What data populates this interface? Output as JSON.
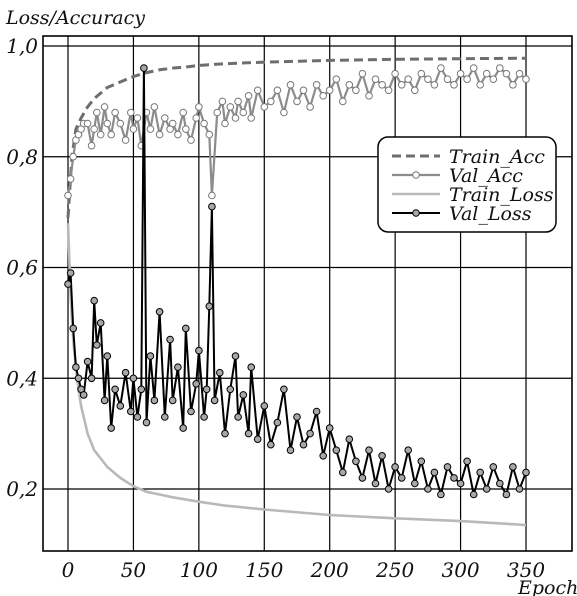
{
  "chart_data": {
    "type": "line",
    "title": "",
    "ylabel": "Loss/Accuracy",
    "xlabel": "Epoch",
    "xlim": [
      0,
      350
    ],
    "ylim": [
      0.12,
      1.03
    ],
    "xticks": [
      0,
      50,
      100,
      150,
      200,
      250,
      300,
      350
    ],
    "yticks": [
      0.2,
      0.4,
      0.6,
      0.8,
      1.0
    ],
    "ytick_labels": [
      "0,2",
      "0,4",
      "0,6",
      "0,8",
      "1,0"
    ],
    "grid": true,
    "legend_position": "right",
    "series": [
      {
        "name": "Train_Acc",
        "style": "dashed",
        "color": "#6e6e6e",
        "markers": false,
        "x": [
          0,
          3,
          6,
          10,
          15,
          20,
          25,
          30,
          40,
          50,
          60,
          70,
          80,
          90,
          100,
          120,
          150,
          200,
          250,
          300,
          350
        ],
        "y": [
          0.69,
          0.8,
          0.85,
          0.87,
          0.89,
          0.905,
          0.915,
          0.925,
          0.935,
          0.945,
          0.952,
          0.957,
          0.96,
          0.962,
          0.965,
          0.968,
          0.971,
          0.974,
          0.976,
          0.977,
          0.978
        ]
      },
      {
        "name": "Val_Acc",
        "style": "solid",
        "color": "#8c8c8c",
        "markers": true,
        "marker_fill": "#ffffff",
        "x": [
          0,
          2,
          4,
          6,
          8,
          10,
          12,
          15,
          18,
          20,
          22,
          25,
          28,
          30,
          33,
          36,
          40,
          44,
          48,
          50,
          53,
          56,
          60,
          63,
          66,
          70,
          74,
          78,
          80,
          84,
          88,
          90,
          94,
          98,
          100,
          104,
          108,
          110,
          114,
          118,
          120,
          124,
          128,
          130,
          134,
          138,
          140,
          145,
          150,
          155,
          160,
          165,
          170,
          175,
          180,
          185,
          190,
          195,
          200,
          205,
          210,
          215,
          220,
          225,
          230,
          235,
          240,
          245,
          250,
          255,
          260,
          265,
          270,
          275,
          280,
          285,
          290,
          295,
          300,
          305,
          310,
          315,
          320,
          325,
          330,
          335,
          340,
          345,
          350
        ],
        "y": [
          0.73,
          0.76,
          0.8,
          0.83,
          0.84,
          0.85,
          0.86,
          0.86,
          0.82,
          0.85,
          0.88,
          0.84,
          0.89,
          0.86,
          0.84,
          0.88,
          0.86,
          0.83,
          0.88,
          0.85,
          0.87,
          0.82,
          0.88,
          0.85,
          0.89,
          0.84,
          0.87,
          0.85,
          0.86,
          0.84,
          0.88,
          0.85,
          0.83,
          0.87,
          0.89,
          0.86,
          0.84,
          0.73,
          0.88,
          0.9,
          0.86,
          0.89,
          0.87,
          0.9,
          0.88,
          0.91,
          0.87,
          0.92,
          0.89,
          0.9,
          0.92,
          0.88,
          0.93,
          0.9,
          0.92,
          0.89,
          0.93,
          0.91,
          0.92,
          0.94,
          0.9,
          0.93,
          0.92,
          0.95,
          0.91,
          0.94,
          0.93,
          0.92,
          0.95,
          0.93,
          0.94,
          0.92,
          0.95,
          0.94,
          0.93,
          0.96,
          0.94,
          0.93,
          0.95,
          0.94,
          0.96,
          0.93,
          0.95,
          0.94,
          0.96,
          0.95,
          0.93,
          0.95,
          0.94
        ]
      },
      {
        "name": "Train_Loss",
        "style": "solid",
        "color": "#b9b9b9",
        "markers": false,
        "x": [
          0,
          2,
          4,
          6,
          8,
          10,
          15,
          20,
          25,
          30,
          40,
          50,
          60,
          70,
          80,
          100,
          120,
          150,
          200,
          250,
          300,
          350
        ],
        "y": [
          0.68,
          0.55,
          0.47,
          0.42,
          0.38,
          0.35,
          0.3,
          0.27,
          0.255,
          0.24,
          0.22,
          0.205,
          0.195,
          0.19,
          0.185,
          0.177,
          0.17,
          0.163,
          0.153,
          0.147,
          0.142,
          0.135
        ]
      },
      {
        "name": "Val_Loss",
        "style": "solid",
        "color": "#000000",
        "markers": true,
        "marker_fill": "#a8a8a8",
        "x": [
          0,
          2,
          4,
          6,
          8,
          10,
          12,
          15,
          18,
          20,
          22,
          25,
          28,
          30,
          33,
          36,
          40,
          44,
          48,
          50,
          53,
          56,
          58,
          60,
          63,
          66,
          70,
          74,
          78,
          80,
          84,
          88,
          90,
          94,
          98,
          100,
          104,
          106,
          108,
          110,
          112,
          116,
          120,
          124,
          128,
          130,
          134,
          138,
          140,
          145,
          150,
          155,
          160,
          165,
          170,
          175,
          180,
          185,
          190,
          195,
          200,
          205,
          210,
          215,
          220,
          225,
          230,
          235,
          240,
          245,
          250,
          255,
          260,
          265,
          270,
          275,
          280,
          285,
          290,
          295,
          300,
          305,
          310,
          315,
          320,
          325,
          330,
          335,
          340,
          345,
          350
        ],
        "y": [
          0.57,
          0.59,
          0.49,
          0.42,
          0.4,
          0.38,
          0.37,
          0.43,
          0.4,
          0.54,
          0.46,
          0.5,
          0.36,
          0.44,
          0.31,
          0.38,
          0.35,
          0.41,
          0.34,
          0.4,
          0.33,
          0.38,
          0.96,
          0.32,
          0.44,
          0.36,
          0.52,
          0.33,
          0.47,
          0.36,
          0.42,
          0.31,
          0.49,
          0.34,
          0.39,
          0.45,
          0.33,
          0.38,
          0.53,
          0.71,
          0.36,
          0.41,
          0.3,
          0.38,
          0.44,
          0.33,
          0.37,
          0.3,
          0.42,
          0.29,
          0.35,
          0.28,
          0.32,
          0.38,
          0.27,
          0.33,
          0.28,
          0.3,
          0.34,
          0.26,
          0.31,
          0.27,
          0.23,
          0.29,
          0.25,
          0.22,
          0.27,
          0.21,
          0.26,
          0.2,
          0.24,
          0.22,
          0.27,
          0.21,
          0.25,
          0.2,
          0.23,
          0.19,
          0.24,
          0.22,
          0.21,
          0.25,
          0.19,
          0.23,
          0.2,
          0.24,
          0.21,
          0.19,
          0.24,
          0.2,
          0.23
        ]
      }
    ]
  }
}
